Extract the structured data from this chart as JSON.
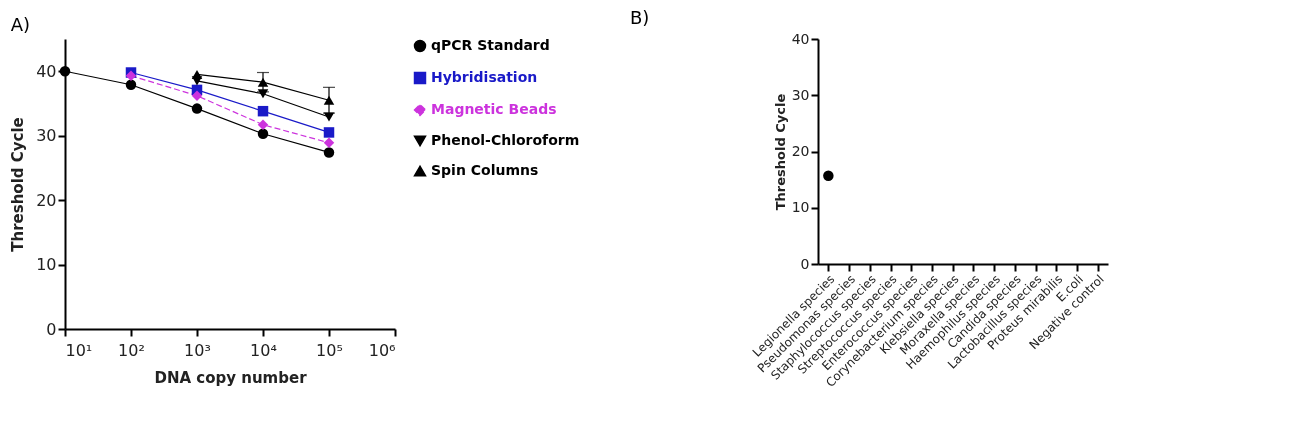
{
  "chart_data": [
    {
      "type": "line",
      "title": "A)",
      "xlabel": "DNA copy number",
      "ylabel": "Threshold Cycle",
      "log": "x",
      "xlim": [
        10,
        1000000
      ],
      "xticks": [
        {
          "value": 10,
          "label": "10¹"
        },
        {
          "value": 100,
          "label": "10²"
        },
        {
          "value": 1000,
          "label": "10³"
        },
        {
          "value": 10000,
          "label": "10⁴"
        },
        {
          "value": 100000,
          "label": "10⁵"
        },
        {
          "value": 1000000,
          "label": "10⁶"
        }
      ],
      "ylim": [
        0,
        45
      ],
      "yticks": [
        0,
        10,
        20,
        30,
        40
      ],
      "grid": false,
      "legend": "right",
      "series": [
        {
          "name": "qPCR Standard",
          "color": "#000000",
          "marker": "circle",
          "x": [
            10,
            100,
            1000,
            10000,
            100000
          ],
          "values": [
            40,
            37.9,
            34.2,
            30.3,
            27.4
          ]
        },
        {
          "name": "Hybridisation",
          "color": "#1a1ac8",
          "marker": "square",
          "x": [
            100,
            1000,
            10000,
            100000
          ],
          "values": [
            39.8,
            37.1,
            33.8,
            30.5
          ]
        },
        {
          "name": "Magnetic Beads",
          "color": "#cc33dd",
          "marker": "diamond",
          "line_style": "dashed",
          "x": [
            100,
            1000,
            10000,
            100000
          ],
          "values": [
            39.3,
            36.2,
            31.7,
            28.9
          ]
        },
        {
          "name": "Phenol-Chloroform",
          "color": "#000000",
          "marker": "triangle-down",
          "x": [
            1000,
            10000,
            100000
          ],
          "values": [
            38.5,
            36.5,
            32.9
          ]
        },
        {
          "name": "Spin Columns",
          "color": "#000000",
          "marker": "triangle-up",
          "x": [
            1000,
            10000,
            100000
          ],
          "values": [
            39.5,
            38.3,
            35.5
          ],
          "errors": [
            null,
            1.5,
            2
          ]
        }
      ]
    },
    {
      "type": "scatter",
      "title": "B)",
      "ylabel": "Threshold Cycle",
      "ylim": [
        0,
        40
      ],
      "yticks": [
        0,
        10,
        20,
        30,
        40
      ],
      "grid": false,
      "marker": "circle",
      "color": "#000000",
      "categories": [
        "Legionella species",
        "Pseudomonas species",
        "Staphylococcus species",
        "Streptococcus species",
        "Enterococcus species",
        "Corynebacterium species",
        "Klebsiella species",
        "Moraxella species",
        "Haemophilus species",
        "Candida species",
        "Lactobacillus species",
        "Proteus mirabilis",
        "E.coli",
        "Negative control"
      ],
      "values": [
        15.7,
        null,
        null,
        null,
        null,
        null,
        null,
        null,
        null,
        null,
        null,
        null,
        null,
        null
      ]
    }
  ]
}
